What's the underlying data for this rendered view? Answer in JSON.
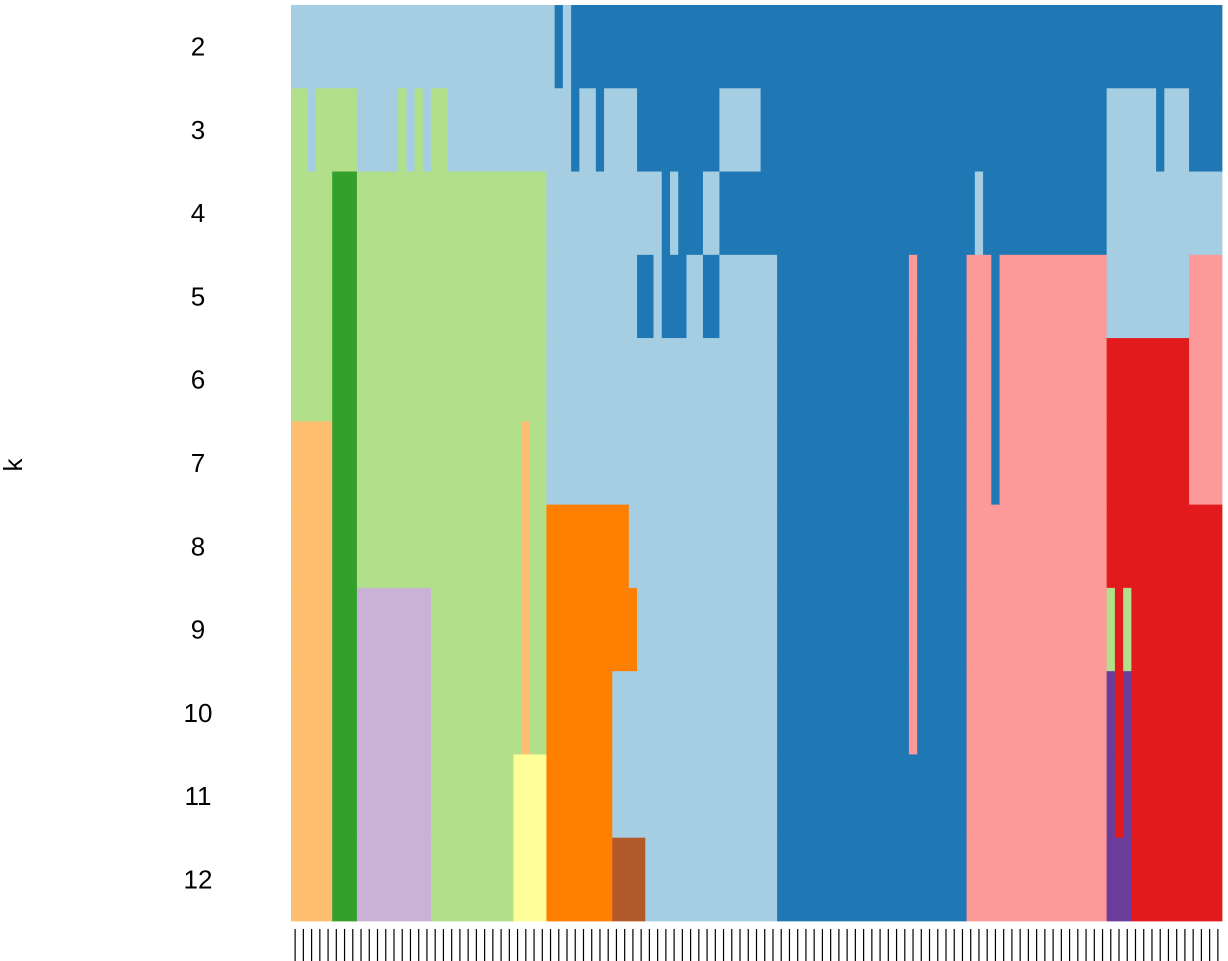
{
  "chart_data": {
    "type": "heatmap",
    "ylabel": "k",
    "xlabel": "",
    "y_categories": [
      "2",
      "3",
      "4",
      "5",
      "6",
      "7",
      "8",
      "9",
      "10",
      "11",
      "12"
    ],
    "n_samples": 113,
    "tick_marks": "one per sample along bottom axis",
    "palette": {
      "light_blue": "#A6CEE3",
      "dark_blue": "#1F78B4",
      "light_green": "#B2DF8A",
      "dark_green": "#33A02C",
      "pink": "#FB9A99",
      "red": "#E31A1C",
      "light_orange": "#FDBF6F",
      "orange": "#FF7F00",
      "lavender": "#CAB2D6",
      "purple": "#6A3D9A",
      "yellow": "#FFFF99",
      "brown": "#B15928"
    },
    "rows": [
      {
        "k": "2",
        "segments": [
          [
            0,
            32,
            "light_blue"
          ],
          [
            32,
            33,
            "dark_blue"
          ],
          [
            33,
            34,
            "light_blue"
          ],
          [
            34,
            113,
            "dark_blue"
          ]
        ]
      },
      {
        "k": "3",
        "segments": [
          [
            0,
            2,
            "light_green"
          ],
          [
            2,
            3,
            "light_blue"
          ],
          [
            3,
            8,
            "light_green"
          ],
          [
            8,
            13,
            "light_blue"
          ],
          [
            13,
            14,
            "light_green"
          ],
          [
            14,
            15,
            "light_blue"
          ],
          [
            15,
            16,
            "light_green"
          ],
          [
            16,
            17,
            "light_blue"
          ],
          [
            17,
            19,
            "light_green"
          ],
          [
            19,
            34,
            "light_blue"
          ],
          [
            34,
            35,
            "dark_blue"
          ],
          [
            35,
            37,
            "light_blue"
          ],
          [
            37,
            38,
            "dark_blue"
          ],
          [
            38,
            42,
            "light_blue"
          ],
          [
            42,
            52,
            "dark_blue"
          ],
          [
            52,
            57,
            "light_blue"
          ],
          [
            57,
            99,
            "dark_blue"
          ],
          [
            99,
            105,
            "light_blue"
          ],
          [
            105,
            106,
            "dark_blue"
          ],
          [
            106,
            109,
            "light_blue"
          ],
          [
            109,
            113,
            "dark_blue"
          ]
        ]
      },
      {
        "k": "4",
        "segments": [
          [
            0,
            5,
            "light_green"
          ],
          [
            5,
            8,
            "dark_green"
          ],
          [
            8,
            31,
            "light_green"
          ],
          [
            31,
            45,
            "light_blue"
          ],
          [
            45,
            46,
            "dark_blue"
          ],
          [
            46,
            47,
            "light_blue"
          ],
          [
            47,
            50,
            "dark_blue"
          ],
          [
            50,
            52,
            "light_blue"
          ],
          [
            52,
            57,
            "dark_blue"
          ],
          [
            57,
            59,
            "dark_blue"
          ],
          [
            59,
            83,
            "dark_blue"
          ],
          [
            83,
            84,
            "light_blue"
          ],
          [
            84,
            99,
            "dark_blue"
          ],
          [
            99,
            113,
            "light_blue"
          ]
        ]
      },
      {
        "k": "5",
        "segments": [
          [
            0,
            5,
            "light_green"
          ],
          [
            5,
            8,
            "dark_green"
          ],
          [
            8,
            31,
            "light_green"
          ],
          [
            31,
            42,
            "light_blue"
          ],
          [
            42,
            44,
            "dark_blue"
          ],
          [
            44,
            45,
            "light_blue"
          ],
          [
            45,
            48,
            "dark_blue"
          ],
          [
            48,
            50,
            "light_blue"
          ],
          [
            50,
            52,
            "dark_blue"
          ],
          [
            52,
            59,
            "light_blue"
          ],
          [
            59,
            75,
            "dark_blue"
          ],
          [
            75,
            76,
            "pink"
          ],
          [
            76,
            82,
            "dark_blue"
          ],
          [
            82,
            85,
            "pink"
          ],
          [
            85,
            86,
            "dark_blue"
          ],
          [
            86,
            99,
            "pink"
          ],
          [
            99,
            109,
            "light_blue"
          ],
          [
            109,
            113,
            "pink"
          ]
        ]
      },
      {
        "k": "6",
        "segments": [
          [
            0,
            5,
            "light_green"
          ],
          [
            5,
            8,
            "dark_green"
          ],
          [
            8,
            31,
            "light_green"
          ],
          [
            31,
            59,
            "light_blue"
          ],
          [
            59,
            75,
            "dark_blue"
          ],
          [
            75,
            76,
            "pink"
          ],
          [
            76,
            82,
            "dark_blue"
          ],
          [
            82,
            85,
            "pink"
          ],
          [
            85,
            86,
            "dark_blue"
          ],
          [
            86,
            99,
            "pink"
          ],
          [
            99,
            109,
            "red"
          ],
          [
            109,
            113,
            "pink"
          ]
        ]
      },
      {
        "k": "7",
        "segments": [
          [
            0,
            5,
            "light_orange"
          ],
          [
            5,
            8,
            "dark_green"
          ],
          [
            8,
            28,
            "light_green"
          ],
          [
            28,
            29,
            "light_orange"
          ],
          [
            29,
            31,
            "light_green"
          ],
          [
            31,
            59,
            "light_blue"
          ],
          [
            59,
            75,
            "dark_blue"
          ],
          [
            75,
            76,
            "pink"
          ],
          [
            76,
            82,
            "dark_blue"
          ],
          [
            82,
            85,
            "pink"
          ],
          [
            85,
            86,
            "dark_blue"
          ],
          [
            86,
            99,
            "pink"
          ],
          [
            99,
            109,
            "red"
          ],
          [
            109,
            113,
            "pink"
          ]
        ]
      },
      {
        "k": "8",
        "segments": [
          [
            0,
            5,
            "light_orange"
          ],
          [
            5,
            8,
            "dark_green"
          ],
          [
            8,
            28,
            "light_green"
          ],
          [
            28,
            29,
            "light_orange"
          ],
          [
            29,
            31,
            "light_green"
          ],
          [
            31,
            41,
            "orange"
          ],
          [
            41,
            59,
            "light_blue"
          ],
          [
            59,
            75,
            "dark_blue"
          ],
          [
            75,
            76,
            "pink"
          ],
          [
            76,
            82,
            "dark_blue"
          ],
          [
            82,
            99,
            "pink"
          ],
          [
            99,
            113,
            "red"
          ]
        ]
      },
      {
        "k": "9",
        "segments": [
          [
            0,
            5,
            "light_orange"
          ],
          [
            5,
            8,
            "dark_green"
          ],
          [
            8,
            17,
            "lavender"
          ],
          [
            17,
            28,
            "light_green"
          ],
          [
            28,
            29,
            "light_orange"
          ],
          [
            29,
            31,
            "light_green"
          ],
          [
            31,
            42,
            "orange"
          ],
          [
            42,
            59,
            "light_blue"
          ],
          [
            59,
            75,
            "dark_blue"
          ],
          [
            75,
            76,
            "pink"
          ],
          [
            76,
            82,
            "dark_blue"
          ],
          [
            82,
            99,
            "pink"
          ],
          [
            99,
            100,
            "light_green"
          ],
          [
            100,
            101,
            "red"
          ],
          [
            101,
            102,
            "light_green"
          ],
          [
            102,
            113,
            "red"
          ]
        ]
      },
      {
        "k": "10",
        "segments": [
          [
            0,
            5,
            "light_orange"
          ],
          [
            5,
            8,
            "dark_green"
          ],
          [
            8,
            17,
            "lavender"
          ],
          [
            17,
            28,
            "light_green"
          ],
          [
            28,
            29,
            "light_orange"
          ],
          [
            29,
            31,
            "light_green"
          ],
          [
            31,
            39,
            "orange"
          ],
          [
            39,
            59,
            "light_blue"
          ],
          [
            59,
            75,
            "dark_blue"
          ],
          [
            75,
            76,
            "pink"
          ],
          [
            76,
            82,
            "dark_blue"
          ],
          [
            82,
            99,
            "pink"
          ],
          [
            99,
            100,
            "purple"
          ],
          [
            100,
            101,
            "red"
          ],
          [
            101,
            102,
            "purple"
          ],
          [
            102,
            113,
            "red"
          ]
        ]
      },
      {
        "k": "11",
        "segments": [
          [
            0,
            5,
            "light_orange"
          ],
          [
            5,
            8,
            "dark_green"
          ],
          [
            8,
            17,
            "lavender"
          ],
          [
            17,
            27,
            "light_green"
          ],
          [
            27,
            31,
            "yellow"
          ],
          [
            31,
            39,
            "orange"
          ],
          [
            39,
            59,
            "light_blue"
          ],
          [
            59,
            82,
            "dark_blue"
          ],
          [
            82,
            99,
            "pink"
          ],
          [
            99,
            100,
            "purple"
          ],
          [
            100,
            101,
            "red"
          ],
          [
            101,
            102,
            "purple"
          ],
          [
            102,
            113,
            "red"
          ]
        ]
      },
      {
        "k": "12",
        "segments": [
          [
            0,
            5,
            "light_orange"
          ],
          [
            5,
            8,
            "dark_green"
          ],
          [
            8,
            17,
            "lavender"
          ],
          [
            17,
            27,
            "light_green"
          ],
          [
            27,
            31,
            "yellow"
          ],
          [
            31,
            39,
            "orange"
          ],
          [
            39,
            43,
            "brown"
          ],
          [
            43,
            59,
            "light_blue"
          ],
          [
            59,
            82,
            "dark_blue"
          ],
          [
            82,
            99,
            "pink"
          ],
          [
            99,
            102,
            "purple"
          ],
          [
            102,
            113,
            "red"
          ]
        ]
      }
    ]
  }
}
